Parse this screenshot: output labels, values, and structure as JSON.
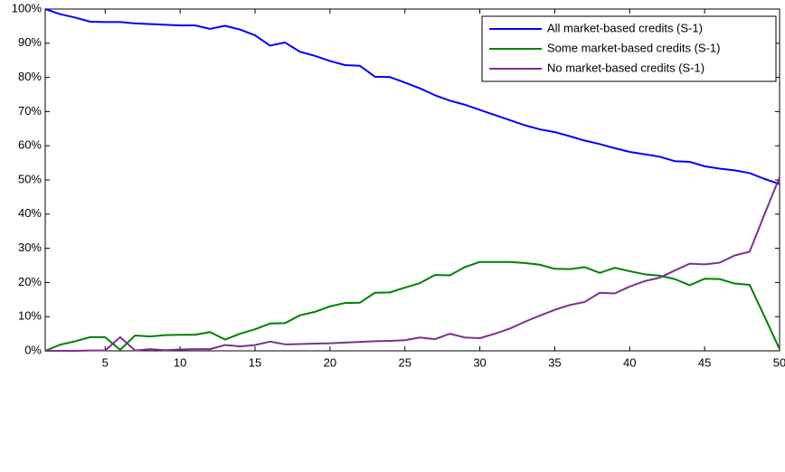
{
  "chart_data": {
    "type": "line",
    "x": [
      1,
      2,
      3,
      4,
      5,
      6,
      7,
      8,
      9,
      10,
      11,
      12,
      13,
      14,
      15,
      16,
      17,
      18,
      19,
      20,
      21,
      22,
      23,
      24,
      25,
      26,
      27,
      28,
      29,
      30,
      31,
      32,
      33,
      34,
      35,
      36,
      37,
      38,
      39,
      40,
      41,
      42,
      43,
      44,
      45,
      46,
      47,
      48,
      49,
      50
    ],
    "series": [
      {
        "name": "All market-based credits (S-1)",
        "color": "#0000ff",
        "values": [
          100,
          98.5,
          97.5,
          96.3,
          96.2,
          96.2,
          95.8,
          95.6,
          95.4,
          95.2,
          95.2,
          94.2,
          95.1,
          94,
          92.3,
          89.3,
          90.2,
          87.5,
          86.3,
          84.8,
          83.6,
          83.4,
          80.2,
          80.1,
          78.5,
          76.8,
          74.8,
          73.2,
          72,
          70.5,
          69,
          67.5,
          66,
          64.8,
          64,
          62.8,
          61.5,
          60.5,
          59.3,
          58.2,
          57.5,
          56.8,
          55.5,
          55.3,
          54,
          53.3,
          52.8,
          52,
          50.3,
          48.8
        ]
      },
      {
        "name": "Some market-based credits (S-1)",
        "color": "#008000",
        "values": [
          0,
          1.8,
          2.8,
          4,
          4,
          0.3,
          4.5,
          4.2,
          4.6,
          4.7,
          4.7,
          5.5,
          3.3,
          5,
          6.3,
          8,
          8.1,
          10.4,
          11.4,
          13,
          14,
          14.1,
          17,
          17.1,
          18.5,
          19.8,
          22.2,
          22.1,
          24.5,
          26,
          26,
          26,
          25.7,
          25.2,
          24,
          23.9,
          24.5,
          22.8,
          24.3,
          23.3,
          22.4,
          22,
          21,
          19.2,
          21.1,
          21,
          19.7,
          19.3,
          10,
          0.5
        ]
      },
      {
        "name": "No market-based credits (S-1)",
        "color": "#7e2f8e",
        "values": [
          0,
          0,
          0,
          0.1,
          0.1,
          4,
          0.1,
          0.5,
          0.2,
          0.4,
          0.5,
          0.5,
          1.7,
          1.3,
          1.7,
          2.7,
          1.9,
          2,
          2.1,
          2.2,
          2.4,
          2.6,
          2.8,
          2.9,
          3.1,
          3.9,
          3.4,
          5,
          3.9,
          3.7,
          5,
          6.5,
          8.5,
          10.3,
          12,
          13.4,
          14.3,
          17,
          16.8,
          18.8,
          20.4,
          21.4,
          23.5,
          25.5,
          25.3,
          25.8,
          27.9,
          29,
          40,
          50.8
        ]
      }
    ],
    "xlim": [
      1,
      50
    ],
    "xticks": [
      5,
      10,
      15,
      20,
      25,
      30,
      35,
      40,
      45,
      50
    ],
    "ylim": [
      0,
      100
    ],
    "yticks": [
      {
        "value": 0,
        "label": "0%"
      },
      {
        "value": 10,
        "label": "10%"
      },
      {
        "value": 20,
        "label": "20%"
      },
      {
        "value": 30,
        "label": "30%"
      },
      {
        "value": 40,
        "label": "40%"
      },
      {
        "value": 50,
        "label": "50%"
      },
      {
        "value": 60,
        "label": "60%"
      },
      {
        "value": 70,
        "label": "70%"
      },
      {
        "value": 80,
        "label": "80%"
      },
      {
        "value": 90,
        "label": "90%"
      },
      {
        "value": 100,
        "label": "100%"
      }
    ],
    "grid": false,
    "legend": "upper right"
  }
}
